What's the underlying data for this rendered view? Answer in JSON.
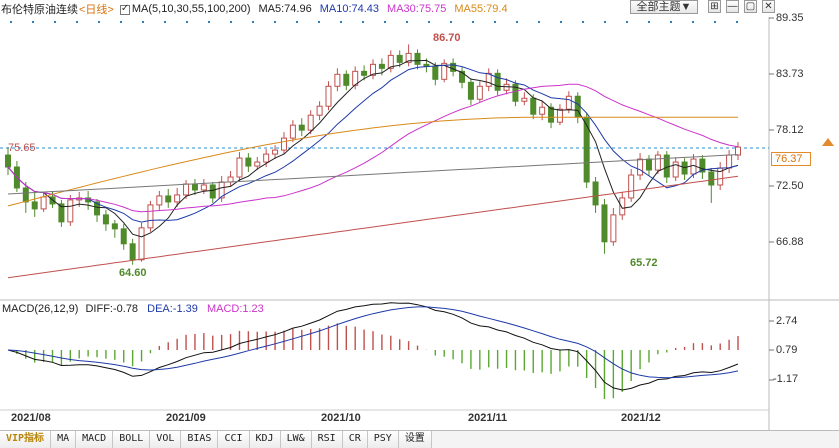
{
  "header": {
    "title": "布伦特原油连续",
    "period": "<日线>",
    "ma_def": "MA(5,10,30,55,100,200)",
    "ma5": "MA5:74.96",
    "ma10": "MA10:74.43",
    "ma30": "MA30:75.75",
    "ma55": "MA55:79.4",
    "theme_button": "全部主题▼",
    "tool_buttons": [
      "⊞",
      "—",
      "▢",
      "✕"
    ]
  },
  "price_axis": [
    "89.35",
    "83.73",
    "78.12",
    "72.50",
    "66.88"
  ],
  "current_price": "76.37",
  "left_marker": "75.65",
  "annotations": {
    "high": "86.70",
    "low1": "64.60",
    "low2": "65.72"
  },
  "macd": {
    "title": "MACD(26,12,9)",
    "diff": "DIFF:-0.78",
    "dea": "DEA:-1.39",
    "macd": "MACD:1.23",
    "axis": [
      "2.74",
      "0.79",
      "-1.17"
    ]
  },
  "dates": [
    "2021/08",
    "2021/09",
    "2021/10",
    "2021/11",
    "2021/12"
  ],
  "tabs": [
    "VIP指标",
    "MA",
    "MACD",
    "BOLL",
    "VOL",
    "BIAS",
    "CCI",
    "KDJ",
    "LW&",
    "RSI",
    "CR",
    "PSY",
    "设置"
  ],
  "colors": {
    "up": "#c0504d",
    "down": "#4f8a2b",
    "ma5": "#222222",
    "ma10": "#1f3aa8",
    "ma30": "#cc33cc",
    "ma55": "#d98a1a",
    "ma100": "#777777",
    "ma200": "#c0504d",
    "accent": "#d9730d"
  }
}
